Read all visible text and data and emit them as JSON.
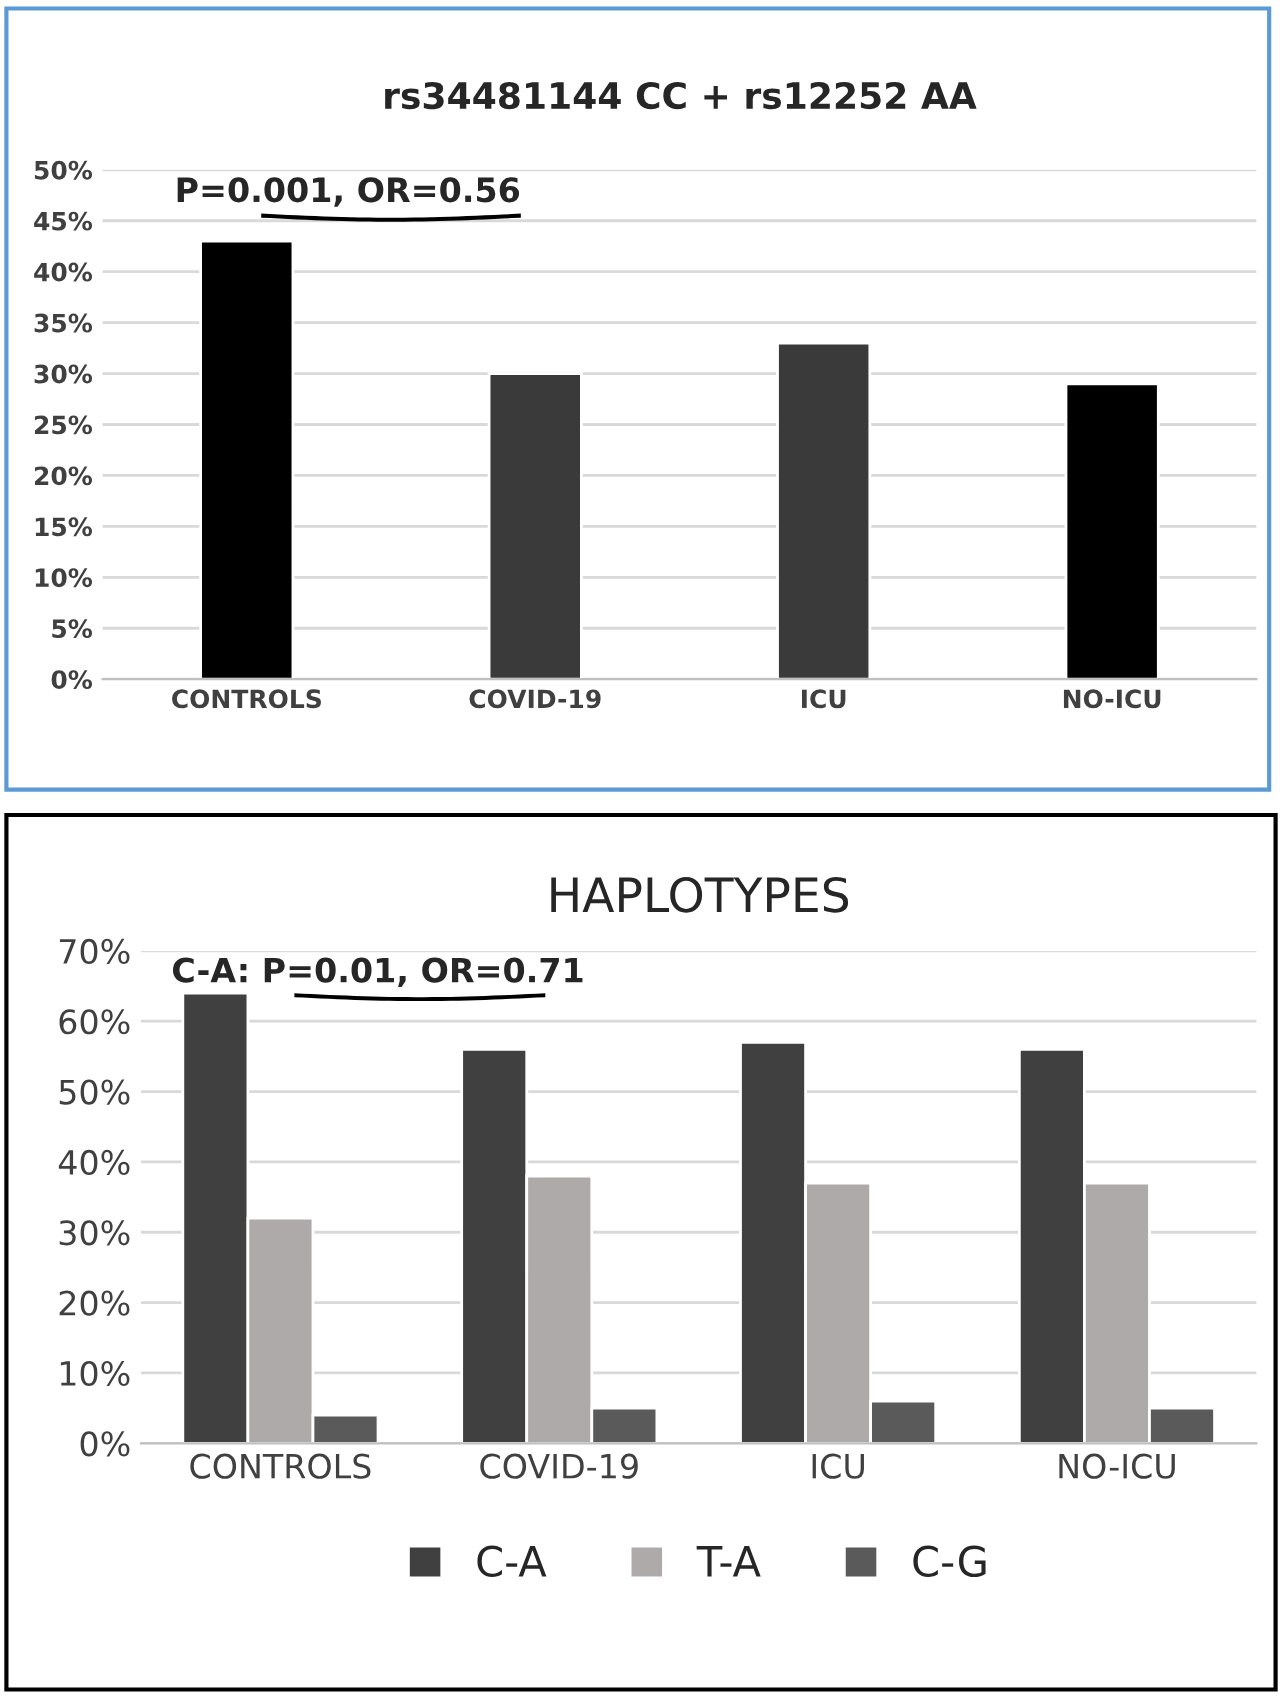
{
  "chart_data": [
    {
      "type": "bar",
      "title": "rs34481144 CC + rs12252 AA",
      "categories": [
        "CONTROLS",
        "COVID-19",
        "ICU",
        "NO-ICU"
      ],
      "values": [
        43,
        30,
        33,
        29
      ],
      "colors": [
        "#000000",
        "#3a3a3a",
        "#3a3a3a",
        "#000000"
      ],
      "ylim": [
        0,
        50
      ],
      "yticks": [
        {
          "value": 0,
          "label": "0%"
        },
        {
          "value": 5,
          "label": "5%"
        },
        {
          "value": 10,
          "label": "10%"
        },
        {
          "value": 15,
          "label": "15%"
        },
        {
          "value": 20,
          "label": "20%"
        },
        {
          "value": 25,
          "label": "25%"
        },
        {
          "value": 30,
          "label": "30%"
        },
        {
          "value": 35,
          "label": "35%"
        },
        {
          "value": 40,
          "label": "40%"
        },
        {
          "value": 45,
          "label": "45%"
        },
        {
          "value": 50,
          "label": "50%"
        }
      ],
      "grid": "y",
      "legend": false,
      "annotations": [
        "P=0.001, OR=0.56"
      ]
    },
    {
      "type": "bar",
      "title": "HAPLOTYPES",
      "categories": [
        "CONTROLS",
        "COVID-19",
        "ICU",
        "NO-ICU"
      ],
      "series": [
        {
          "name": "C-A",
          "color": "#404040",
          "values": [
            64,
            56,
            57,
            56
          ]
        },
        {
          "name": "T-A",
          "color": "#aeaaaa",
          "values": [
            32,
            38,
            37,
            37
          ]
        },
        {
          "name": "C-G",
          "color": "#5a5a5a",
          "values": [
            4,
            5,
            6,
            5
          ]
        }
      ],
      "ylim": [
        0,
        70
      ],
      "yticks": [
        {
          "value": 0,
          "label": "0%"
        },
        {
          "value": 10,
          "label": "10%"
        },
        {
          "value": 20,
          "label": "20%"
        },
        {
          "value": 30,
          "label": "30%"
        },
        {
          "value": 40,
          "label": "40%"
        },
        {
          "value": 50,
          "label": "50%"
        },
        {
          "value": 60,
          "label": "60%"
        },
        {
          "value": 70,
          "label": "70%"
        }
      ],
      "grid": "y",
      "legend": "bottom",
      "annotations": [
        "C-A: P=0.01, OR=0.71"
      ]
    }
  ]
}
